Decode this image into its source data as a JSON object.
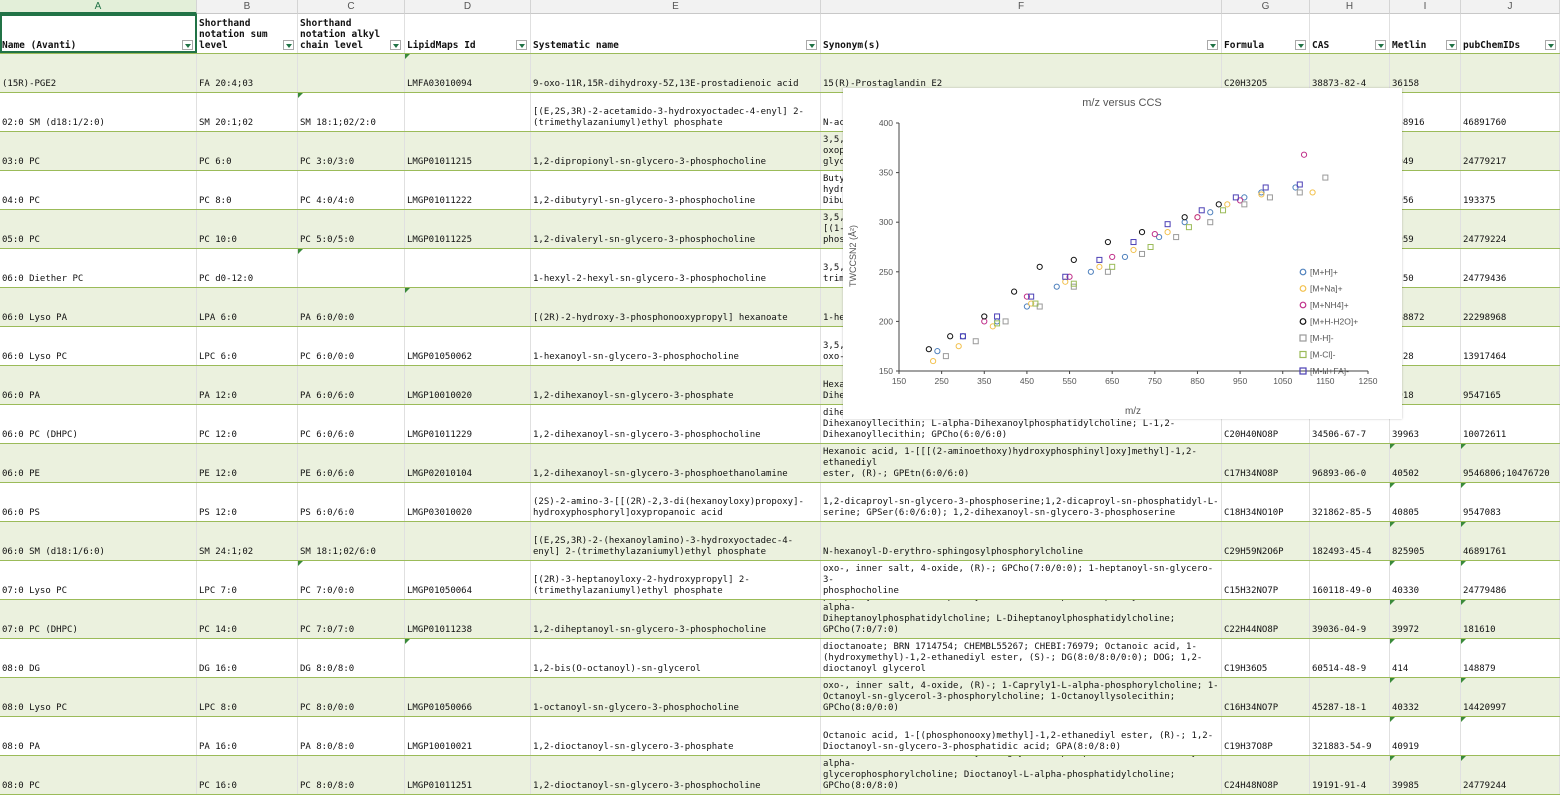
{
  "columns": [
    "A",
    "B",
    "C",
    "D",
    "E",
    "F",
    "G",
    "H",
    "I",
    "J"
  ],
  "selected_column": "A",
  "header": {
    "name": "Name (Avanti)",
    "sum_level": "Shorthand\nnotation sum\nlevel",
    "alkyl_level": "Shorthand\nnotation alkyl\nchain level",
    "lipidmaps": "LipidMaps Id",
    "systematic": "Systematic name",
    "synonyms": "Synonym(s)",
    "formula": "Formula",
    "cas": "CAS",
    "metlin": "Metlin",
    "pubchem": "pubChemIDs"
  },
  "rows": [
    {
      "name": "(15R)-PGE2",
      "sum": "FA 20:4;03",
      "alkyl": "",
      "lm": "LMFA03010094",
      "sys": "9-oxo-11R,15R-dihydroxy-5Z,13E-prostadienoic acid",
      "syn": "15(R)-Prostaglandin E2",
      "formula": "C20H32O5",
      "cas": "38873-82-4",
      "metlin": "36158",
      "pub": ""
    },
    {
      "name": "02:0 SM (d18:1/2:0)",
      "sum": "SM 20:1;02",
      "alkyl": "SM 18:1;02/2:0",
      "lm": "",
      "sys": "[(E,2S,3R)-2-acetamido-3-hydroxyoctadec-4-enyl] 2-(trimethylazaniumyl)ethyl phosphate",
      "syn": "N-ac",
      "formula": "",
      "cas": "",
      "metlin": "968916",
      "pub": "46891760"
    },
    {
      "name": "03:0 PC",
      "sum": "PC 6:0",
      "alkyl": "PC 3:0/3:0",
      "lm": "LMGP01011215",
      "sys": "1,2-dipropionyl-sn-glycero-3-phosphocholine",
      "syn": "3,5,\noxop\nglyc",
      "formula": "",
      "cas": "",
      "metlin": "0949",
      "pub": "24779217"
    },
    {
      "name": "04:0 PC",
      "sum": "PC 8:0",
      "alkyl": "PC 4:0/4:0",
      "lm": "LMGP01011222",
      "sys": "1,2-dibutyryl-sn-glycero-3-phosphocholine",
      "syn": "Buty\nhydr\nDibu",
      "formula": "",
      "cas": "",
      "metlin": "0956",
      "pub": "193375"
    },
    {
      "name": "05:0 PC",
      "sum": "PC 10:0",
      "alkyl": "PC 5:0/5:0",
      "lm": "LMGP01011225",
      "sys": "1,2-divaleryl-sn-glycero-3-phosphocholine",
      "syn": "3,5,\n[(1-\nphos",
      "formula": "",
      "cas": "",
      "metlin": "0959",
      "pub": "24779224"
    },
    {
      "name": "06:0 Diether PC",
      "sum": "PC d0-12:0",
      "alkyl": "",
      "lm": "",
      "sys": "1-hexyl-2-hexyl-sn-glycero-3-phosphocholine",
      "syn": "3,5,\ntrim",
      "formula": "",
      "cas": "",
      "metlin": "0250",
      "pub": "24779436"
    },
    {
      "name": "06:0 Lyso PA",
      "sum": "LPA 6:0",
      "alkyl": "PA 6:0/0:0",
      "lm": "",
      "sys": "[(2R)-2-hydroxy-3-phosphonooxypropyl] hexanoate",
      "syn": "1-he",
      "formula": "",
      "cas": "",
      "metlin": "968872",
      "pub": "22298968"
    },
    {
      "name": "06:0 Lyso PC",
      "sum": "LPC 6:0",
      "alkyl": "PC 6:0/0:0",
      "lm": "LMGP01050062",
      "sys": "1-hexanoyl-sn-glycero-3-phosphocholine",
      "syn": "3,5,\noxo-",
      "formula": "",
      "cas": "",
      "metlin": "0328",
      "pub": "13917464"
    },
    {
      "name": "06:0 PA",
      "sum": "PA 12:0",
      "alkyl": "PA 6:0/6:0",
      "lm": "LMGP10010020",
      "sys": "1,2-dihexanoyl-sn-glycero-3-phosphate",
      "syn": "Hexa\nDihe",
      "formula": "",
      "cas": "",
      "metlin": "0918",
      "pub": "9547165"
    },
    {
      "name": "06:0 PC (DHPC)",
      "sum": "PC 12:0",
      "alkyl": "PC 6:0/6:0",
      "lm": "LMGP01011229",
      "sys": "1,2-dihexanoyl-sn-glycero-3-phosphocholine",
      "syn": "dihe\nDihexanoyllecithin; L-alpha-Dihexanoylphosphatidylcholine; L-1,2-\nDihexanoyllecithin; GPCho(6:0/6:0)",
      "formula": "C20H40NO8P",
      "cas": "34506-67-7",
      "metlin": "39963",
      "pub": "10072611"
    },
    {
      "name": "06:0 PE",
      "sum": "PE 12:0",
      "alkyl": "PE 6:0/6:0",
      "lm": "LMGP02010104",
      "sys": "1,2-dihexanoyl-sn-glycero-3-phosphoethanolamine",
      "syn": "Hexanoic acid, 1-[[[(2-aminoethoxy)hydroxyphosphinyl]oxy]methyl]-1,2-ethanediyl\nester, (R)-; GPEtn(6:0/6:0)",
      "formula": "C17H34NO8P",
      "cas": "96893-06-0",
      "metlin": "40502",
      "pub": "9546806;10476720"
    },
    {
      "name": "06:0 PS",
      "sum": "PS 12:0",
      "alkyl": "PS 6:0/6:0",
      "lm": "LMGP03010020",
      "sys": "(2S)-2-amino-3-[[(2R)-2,3-di(hexanoyloxy)propoxy]-hydroxyphosphoryl]oxypropanoic acid",
      "syn": "1,2-dicaproyl-sn-glycero-3-phosphoserine;1,2-dicaproyl-sn-phosphatidyl-L-\nserine; GPSer(6:0/6:0); 1,2-dihexanoyl-sn-glycero-3-phosphoserine",
      "formula": "C18H34NO10P",
      "cas": "321862-85-5",
      "metlin": "40805",
      "pub": "9547083"
    },
    {
      "name": "06:0 SM (d18:1/6:0)",
      "sum": "SM 24:1;02",
      "alkyl": "SM 18:1;02/6:0",
      "lm": "",
      "sys": "[(E,2S,3R)-2-(hexanoylamino)-3-hydroxyoctadec-4-enyl] 2-(trimethylazaniumyl)ethyl phosphate",
      "syn": "N-hexanoyl-D-erythro-sphingosylphosphorylcholine",
      "formula": "C29H59N2O6P",
      "cas": "182493-45-4",
      "metlin": "825905",
      "pub": "46891761"
    },
    {
      "name": "07:0 Lyso PC",
      "sum": "LPC 7:0",
      "alkyl": "PC 7:0/0:0",
      "lm": "LMGP01050064",
      "sys": "[(2R)-3-heptanoyloxy-2-hydroxypropyl] 2-(trimethylazaniumyl)ethyl phosphate",
      "syn": "3,5,9-Trioxa-4-phosphahexadecan-1-aminium, 4,7-dihydroxy-N,N,N-trimethyl-10-\noxo-, inner salt, 4-oxide, (R)-; GPCho(7:0/0:0); 1-heptanoyl-sn-glycero-3-\nphosphocholine",
      "formula": "C15H32NO7P",
      "cas": "160118-49-0",
      "metlin": "40330",
      "pub": "24779486"
    },
    {
      "name": "07:0 PC (DHPC)",
      "sum": "PC 14:0",
      "alkyl": "PC 7:0/7:0",
      "lm": "LMGP01011238",
      "sys": "1,2-diheptanoyl-sn-glycero-3-phosphocholine",
      "syn": "phosphorylcholine; Diheptanoyllecithin; L-alpha-Diheptanoyllecithin; L-alpha-\nDiheptanoylphosphatidylcholine; L-Diheptanoylphosphatidylcholine;\nGPCho(7:0/7:0)",
      "formula": "C22H44NO8P",
      "cas": "39036-04-9",
      "metlin": "39972",
      "pub": "181610"
    },
    {
      "name": "08:0 DG",
      "sum": "DG 16:0",
      "alkyl": "DG 8:0/8:0",
      "lm": "",
      "sys": "1,2-bis(O-octanoyl)-sn-glycerol",
      "syn": "dioctanoate; BRN 1714754; CHEMBL55267; CHEBI:76979; Octanoic acid, 1-\n(hydroxymethyl)-1,2-ethanediyl ester, (S)-; DG(8:0/8:0/0:0); DOG; 1,2-\ndioctanoyl glycerol",
      "formula": "C19H36O5",
      "cas": "60514-48-9",
      "metlin": "414",
      "pub": "148879"
    },
    {
      "name": "08:0 Lyso PC",
      "sum": "LPC 8:0",
      "alkyl": "PC 8:0/0:0",
      "lm": "LMGP01050066",
      "sys": "1-octanoyl-sn-glycero-3-phosphocholine",
      "syn": "oxo-, inner salt, 4-oxide, (R)-; 1-Capryly1-L-alpha-phosphorylcholine; 1-\nOctanoyl-sn-glycerol-3-phosphorylcholine; 1-Octanoyllysolecithin;\nGPCho(8:0/0:0)",
      "formula": "C16H34NO7P",
      "cas": "45287-18-1",
      "metlin": "40332",
      "pub": "14420997"
    },
    {
      "name": "08:0 PA",
      "sum": "PA 16:0",
      "alkyl": "PA 8:0/8:0",
      "lm": "LMGP10010021",
      "sys": "1,2-dioctanoyl-sn-glycero-3-phosphate",
      "syn": "Octanoic acid, 1-[(phosphonooxy)methyl]-1,2-ethanediyl ester, (R)-; 1,2-\nDioctanoyl-sn-glycero-3-phosphatidic acid; GPA(8:0/8:0)",
      "formula": "C19H37O8P",
      "cas": "321883-54-9",
      "metlin": "40919",
      "pub": ""
    },
    {
      "name": "08:0 PC",
      "sum": "PC 16:0",
      "alkyl": "PC 8:0/8:0",
      "lm": "LMGP01011251",
      "sys": "1,2-dioctanoyl-sn-glycero-3-phosphocholine",
      "syn": "dioctanoin, L-; 1,2-Dioctanoyl-sn-glycero-3-phosphocholine; Dioctanoyl-L-alpha-\nglycerophosphorylcholine; Dioctanoyl-L-alpha-phosphatidylcholine;\nGPCho(8:0/8:0)",
      "formula": "C24H48NO8P",
      "cas": "19191-91-4",
      "metlin": "39985",
      "pub": "24779244"
    }
  ],
  "chart_data": {
    "type": "scatter",
    "title": "m/z versus CCS",
    "xlabel": "m/z",
    "ylabel": "TWCCSN2 (Å²)",
    "xlim": [
      150,
      1250
    ],
    "ylim": [
      150,
      400
    ],
    "xticks": [
      "150",
      "250",
      "350",
      "450",
      "550",
      "650",
      "750",
      "850",
      "950",
      "1050",
      "1150",
      "1250"
    ],
    "yticks": [
      "150",
      "200",
      "250",
      "300",
      "350",
      "400"
    ],
    "legend_position": "right",
    "series": [
      {
        "name": "[M+H]+",
        "color": "#4f81bd",
        "marker": "circle",
        "points": [
          [
            240,
            170
          ],
          [
            300,
            185
          ],
          [
            380,
            200
          ],
          [
            450,
            215
          ],
          [
            520,
            235
          ],
          [
            600,
            250
          ],
          [
            680,
            265
          ],
          [
            760,
            285
          ],
          [
            820,
            300
          ],
          [
            880,
            310
          ],
          [
            960,
            325
          ],
          [
            1000,
            330
          ],
          [
            1080,
            335
          ]
        ]
      },
      {
        "name": "[M+Na]+",
        "color": "#f2c14e",
        "marker": "circle",
        "points": [
          [
            230,
            160
          ],
          [
            290,
            175
          ],
          [
            370,
            195
          ],
          [
            460,
            218
          ],
          [
            540,
            240
          ],
          [
            620,
            255
          ],
          [
            700,
            272
          ],
          [
            780,
            290
          ],
          [
            850,
            305
          ],
          [
            920,
            318
          ],
          [
            1000,
            328
          ],
          [
            1120,
            330
          ]
        ]
      },
      {
        "name": "[M+NH4]+",
        "color": "#c0308a",
        "marker": "circle",
        "points": [
          [
            350,
            200
          ],
          [
            450,
            225
          ],
          [
            550,
            245
          ],
          [
            650,
            265
          ],
          [
            750,
            288
          ],
          [
            850,
            305
          ],
          [
            950,
            322
          ],
          [
            1100,
            368
          ]
        ]
      },
      {
        "name": "[M+H-H2O]+",
        "color": "#111111",
        "marker": "circle",
        "points": [
          [
            220,
            172
          ],
          [
            270,
            185
          ],
          [
            350,
            205
          ],
          [
            420,
            230
          ],
          [
            480,
            255
          ],
          [
            560,
            262
          ],
          [
            640,
            280
          ],
          [
            720,
            290
          ],
          [
            820,
            305
          ],
          [
            900,
            318
          ]
        ]
      },
      {
        "name": "[M-H]-",
        "color": "#9a9a9a",
        "marker": "square",
        "points": [
          [
            260,
            165
          ],
          [
            330,
            180
          ],
          [
            400,
            200
          ],
          [
            480,
            215
          ],
          [
            560,
            235
          ],
          [
            640,
            250
          ],
          [
            720,
            268
          ],
          [
            800,
            285
          ],
          [
            880,
            300
          ],
          [
            960,
            318
          ],
          [
            1020,
            325
          ],
          [
            1090,
            330
          ],
          [
            1150,
            345
          ]
        ]
      },
      {
        "name": "[M-Cl]-",
        "color": "#9bbb59",
        "marker": "square",
        "points": [
          [
            380,
            198
          ],
          [
            470,
            218
          ],
          [
            560,
            238
          ],
          [
            650,
            255
          ],
          [
            740,
            275
          ],
          [
            830,
            295
          ],
          [
            910,
            312
          ]
        ]
      },
      {
        "name": "[M-H+FA]-",
        "color": "#4b3fb5",
        "marker": "square",
        "points": [
          [
            300,
            185
          ],
          [
            380,
            205
          ],
          [
            460,
            225
          ],
          [
            540,
            245
          ],
          [
            620,
            262
          ],
          [
            700,
            280
          ],
          [
            780,
            298
          ],
          [
            860,
            312
          ],
          [
            940,
            325
          ],
          [
            1010,
            335
          ],
          [
            1090,
            338
          ]
        ]
      }
    ]
  }
}
